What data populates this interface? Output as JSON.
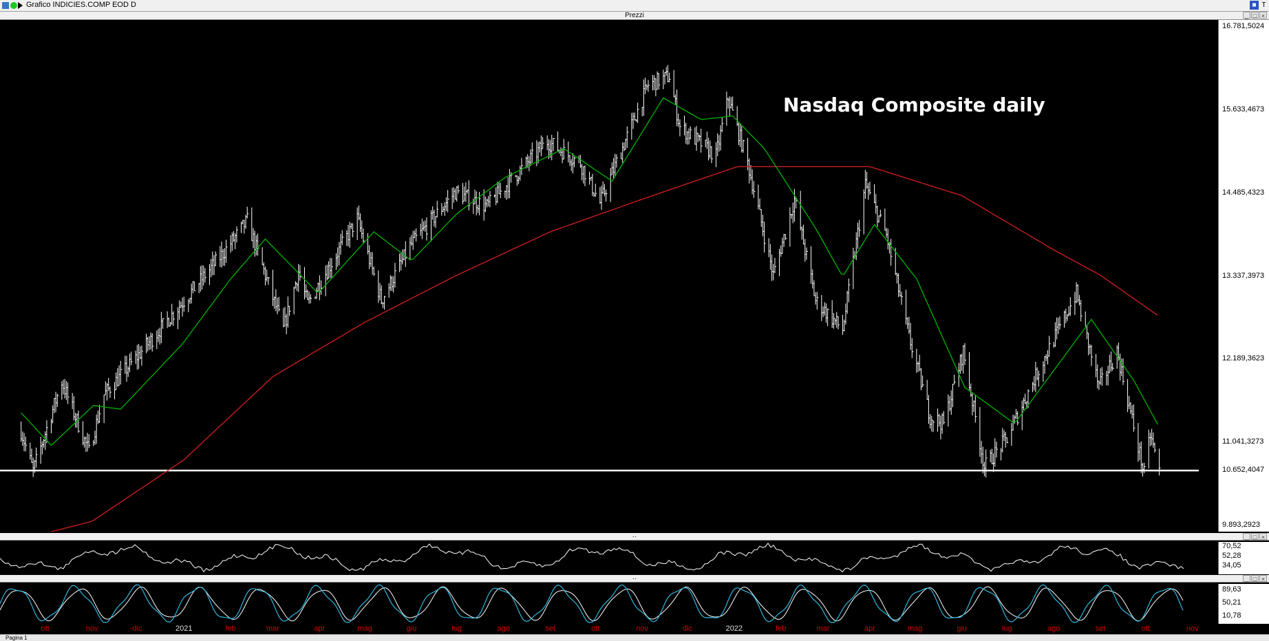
{
  "window": {
    "title": "Grafico INDICIES.COMP EOD D",
    "status_text": "Pagina 1"
  },
  "panels": {
    "price_title": "Prezzi"
  },
  "colors": {
    "price_bars": "#ffffff",
    "ma_short": "#00b400",
    "ma_long": "#c81e1e",
    "support_line": "#ffffff",
    "oscillator1": "#ffffff",
    "osc2_main": "#2fb8e0",
    "osc2_signal": "#ffffff",
    "month_label": "#d60000",
    "year_label": "#e0e0e0"
  },
  "chart_data": {
    "type": "line",
    "annotation": "Nasdaq Composite daily",
    "y_ticks": [
      "16.781,5024",
      "15.633,4673",
      "14.485,4323",
      "13.337,3973",
      "12.189,3623",
      "11.041,3273",
      "9.893,2923"
    ],
    "y_range": [
      9893.2923,
      16781.5024
    ],
    "last_price_label": "10.652,4047",
    "support_level": 10652.4047,
    "x_labels": [
      {
        "label": "ott",
        "year": false
      },
      {
        "label": "nov",
        "year": false
      },
      {
        "label": "dic",
        "year": false
      },
      {
        "label": "2021",
        "year": true
      },
      {
        "label": "feb",
        "year": false
      },
      {
        "label": "mar",
        "year": false
      },
      {
        "label": "apr",
        "year": false
      },
      {
        "label": "mag",
        "year": false
      },
      {
        "label": "giu",
        "year": false
      },
      {
        "label": "lug",
        "year": false
      },
      {
        "label": "ago",
        "year": false
      },
      {
        "label": "set",
        "year": false
      },
      {
        "label": "ott",
        "year": false
      },
      {
        "label": "nov",
        "year": false
      },
      {
        "label": "dic",
        "year": false
      },
      {
        "label": "2022",
        "year": true
      },
      {
        "label": "feb",
        "year": false
      },
      {
        "label": "mar",
        "year": false
      },
      {
        "label": "apr",
        "year": false
      },
      {
        "label": "mag",
        "year": false
      },
      {
        "label": "giu",
        "year": false
      },
      {
        "label": "lug",
        "year": false
      },
      {
        "label": "ago",
        "year": false
      },
      {
        "label": "set",
        "year": false
      },
      {
        "label": "ott",
        "year": false
      },
      {
        "label": "nov",
        "year": false
      }
    ],
    "price_series": [
      {
        "date": "2020-09-15",
        "value": 11200
      },
      {
        "date": "2020-09-23",
        "value": 10650
      },
      {
        "date": "2020-10-12",
        "value": 11880
      },
      {
        "date": "2020-10-30",
        "value": 10910
      },
      {
        "date": "2020-11-09",
        "value": 11700
      },
      {
        "date": "2020-11-30",
        "value": 12200
      },
      {
        "date": "2020-12-28",
        "value": 12900
      },
      {
        "date": "2021-01-25",
        "value": 13600
      },
      {
        "date": "2021-02-12",
        "value": 14100
      },
      {
        "date": "2021-03-08",
        "value": 12600
      },
      {
        "date": "2021-03-18",
        "value": 13400
      },
      {
        "date": "2021-03-24",
        "value": 12950
      },
      {
        "date": "2021-04-26",
        "value": 14130
      },
      {
        "date": "2021-05-12",
        "value": 13000
      },
      {
        "date": "2021-05-31",
        "value": 13750
      },
      {
        "date": "2021-06-30",
        "value": 14500
      },
      {
        "date": "2021-07-21",
        "value": 14300
      },
      {
        "date": "2021-08-30",
        "value": 15200
      },
      {
        "date": "2021-09-21",
        "value": 14900
      },
      {
        "date": "2021-10-04",
        "value": 14350
      },
      {
        "date": "2021-11-05",
        "value": 15980
      },
      {
        "date": "2021-11-19",
        "value": 16100
      },
      {
        "date": "2021-11-26",
        "value": 15400
      },
      {
        "date": "2021-12-20",
        "value": 15000
      },
      {
        "date": "2021-12-28",
        "value": 15800
      },
      {
        "date": "2022-01-10",
        "value": 14900
      },
      {
        "date": "2022-01-27",
        "value": 13350
      },
      {
        "date": "2022-02-10",
        "value": 14400
      },
      {
        "date": "2022-02-24",
        "value": 13000
      },
      {
        "date": "2022-03-14",
        "value": 12600
      },
      {
        "date": "2022-03-29",
        "value": 14600
      },
      {
        "date": "2022-04-12",
        "value": 13900
      },
      {
        "date": "2022-04-27",
        "value": 12500
      },
      {
        "date": "2022-05-11",
        "value": 11400
      },
      {
        "date": "2022-05-20",
        "value": 11300
      },
      {
        "date": "2022-06-02",
        "value": 12300
      },
      {
        "date": "2022-06-16",
        "value": 10700
      },
      {
        "date": "2022-07-01",
        "value": 11100
      },
      {
        "date": "2022-07-21",
        "value": 12000
      },
      {
        "date": "2022-08-16",
        "value": 13100
      },
      {
        "date": "2022-08-31",
        "value": 11800
      },
      {
        "date": "2022-09-12",
        "value": 12300
      },
      {
        "date": "2022-09-30",
        "value": 10600
      },
      {
        "date": "2022-10-04",
        "value": 11150
      },
      {
        "date": "2022-10-10",
        "value": 10650
      }
    ],
    "ma_short_series": [
      {
        "date": "2020-09-15",
        "value": 11450
      },
      {
        "date": "2020-10-05",
        "value": 11000
      },
      {
        "date": "2020-11-02",
        "value": 11550
      },
      {
        "date": "2020-11-20",
        "value": 11500
      },
      {
        "date": "2020-12-31",
        "value": 12400
      },
      {
        "date": "2021-02-01",
        "value": 13300
      },
      {
        "date": "2021-02-24",
        "value": 13850
      },
      {
        "date": "2021-03-31",
        "value": 13100
      },
      {
        "date": "2021-05-07",
        "value": 13950
      },
      {
        "date": "2021-06-01",
        "value": 13550
      },
      {
        "date": "2021-07-01",
        "value": 14200
      },
      {
        "date": "2021-08-02",
        "value": 14700
      },
      {
        "date": "2021-09-10",
        "value": 15100
      },
      {
        "date": "2021-10-12",
        "value": 14650
      },
      {
        "date": "2021-11-15",
        "value": 15800
      },
      {
        "date": "2021-12-10",
        "value": 15500
      },
      {
        "date": "2021-12-31",
        "value": 15550
      },
      {
        "date": "2022-01-21",
        "value": 15100
      },
      {
        "date": "2022-02-24",
        "value": 14000
      },
      {
        "date": "2022-03-14",
        "value": 13330
      },
      {
        "date": "2022-04-04",
        "value": 14050
      },
      {
        "date": "2022-05-02",
        "value": 13300
      },
      {
        "date": "2022-06-03",
        "value": 11800
      },
      {
        "date": "2022-07-06",
        "value": 11300
      },
      {
        "date": "2022-08-26",
        "value": 12740
      },
      {
        "date": "2022-09-23",
        "value": 11900
      },
      {
        "date": "2022-10-10",
        "value": 11250
      }
    ],
    "ma_long_series": [
      {
        "date": "2020-09-15",
        "value": 9700
      },
      {
        "date": "2020-11-01",
        "value": 9950
      },
      {
        "date": "2021-01-01",
        "value": 10800
      },
      {
        "date": "2021-03-01",
        "value": 11950
      },
      {
        "date": "2021-05-01",
        "value": 12700
      },
      {
        "date": "2021-07-01",
        "value": 13350
      },
      {
        "date": "2021-09-01",
        "value": 13950
      },
      {
        "date": "2021-11-01",
        "value": 14400
      },
      {
        "date": "2022-01-03",
        "value": 14850
      },
      {
        "date": "2022-02-01",
        "value": 14850
      },
      {
        "date": "2022-04-01",
        "value": 14850
      },
      {
        "date": "2022-06-01",
        "value": 14450
      },
      {
        "date": "2022-08-01",
        "value": 13700
      },
      {
        "date": "2022-09-01",
        "value": 13350
      },
      {
        "date": "2022-10-10",
        "value": 12780
      }
    ],
    "osc1_ticks": [
      "70,52",
      "52,28",
      "34,05"
    ],
    "osc2_ticks": [
      "89,63",
      "50,21",
      "10,78"
    ]
  }
}
